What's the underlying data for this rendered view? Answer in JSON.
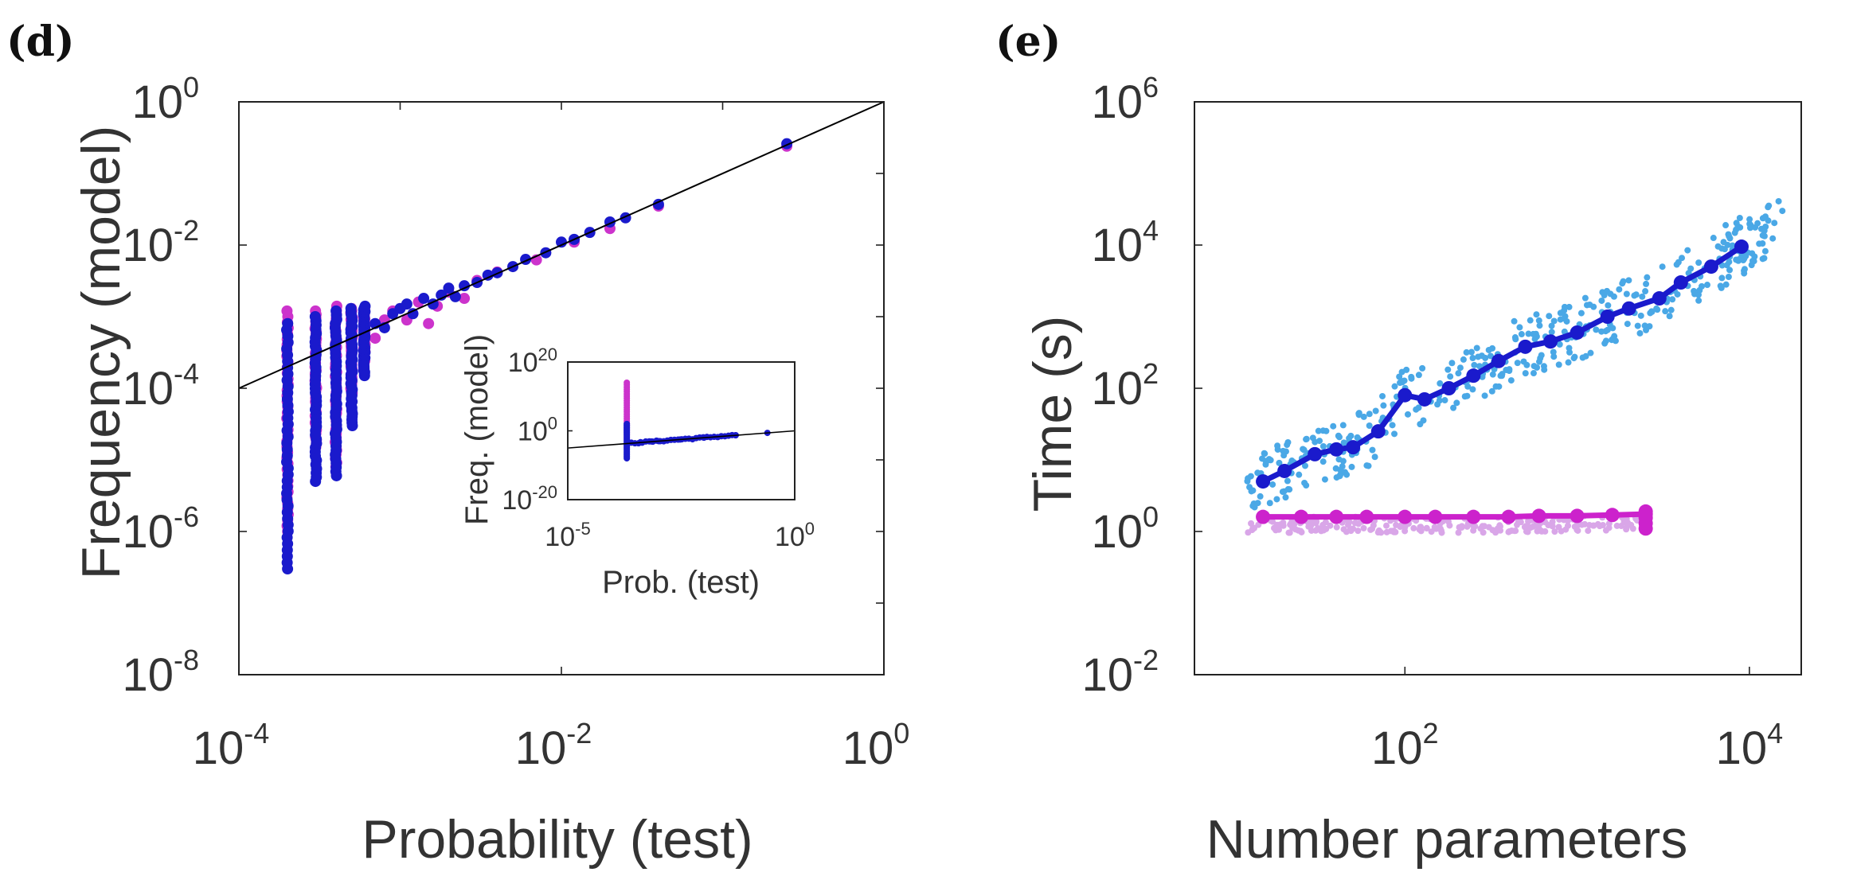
{
  "chart_data": [
    {
      "panel_label": "(d)",
      "type": "scatter",
      "scale": "log-log",
      "xlabel": "Probability (test)",
      "ylabel": "Frequency (model)",
      "xlim": [
        0.0001,
        1
      ],
      "ylim": [
        1e-08,
        1
      ],
      "x_ticks": [
        {
          "base": "10",
          "exp": "-4",
          "value": 0.0001
        },
        {
          "base": "10",
          "exp": "-2",
          "value": 0.01
        },
        {
          "base": "10",
          "exp": "0",
          "value": 1
        }
      ],
      "y_ticks": [
        {
          "base": "10",
          "exp": "-8",
          "value": 1e-08
        },
        {
          "base": "10",
          "exp": "-6",
          "value": 1e-06
        },
        {
          "base": "10",
          "exp": "-4",
          "value": 0.0001
        },
        {
          "base": "10",
          "exp": "-2",
          "value": 0.01
        },
        {
          "base": "10",
          "exp": "0",
          "value": 1
        }
      ],
      "reference_line": {
        "name": "y = x",
        "color": "#000000"
      },
      "series": [
        {
          "name": "magenta",
          "color": "#cc33cc",
          "vertical_bands": [
            {
              "x": 0.0002,
              "y_range": [
                1e-06,
                0.0012
              ]
            },
            {
              "x": 0.0003,
              "y_range": [
                1.5e-05,
                0.0012
              ]
            },
            {
              "x": 0.0004,
              "y_range": [
                8e-06,
                0.0014
              ]
            },
            {
              "x": 0.0005,
              "y_range": [
                8e-05,
                0.0013
              ]
            },
            {
              "x": 0.0006,
              "y_range": [
                0.0002,
                0.0013
              ]
            }
          ],
          "points": [
            [
              0.0007,
              0.0005
            ],
            [
              0.0008,
              0.0009
            ],
            [
              0.0009,
              0.0012
            ],
            [
              0.0011,
              0.0009
            ],
            [
              0.0013,
              0.0016
            ],
            [
              0.0015,
              0.0008
            ],
            [
              0.0017,
              0.0014
            ],
            [
              0.002,
              0.0022
            ],
            [
              0.0025,
              0.0018
            ],
            [
              0.003,
              0.0032
            ],
            [
              0.004,
              0.0042
            ],
            [
              0.007,
              0.0062
            ],
            [
              0.012,
              0.011
            ],
            [
              0.02,
              0.017
            ],
            [
              0.04,
              0.035
            ],
            [
              0.25,
              0.24
            ]
          ]
        },
        {
          "name": "blue",
          "color": "#1a1acc",
          "vertical_bands": [
            {
              "x": 0.0002,
              "y_range": [
                3e-07,
                0.0008
              ]
            },
            {
              "x": 0.0003,
              "y_range": [
                5e-06,
                0.001
              ]
            },
            {
              "x": 0.0004,
              "y_range": [
                6e-06,
                0.0012
              ]
            },
            {
              "x": 0.0005,
              "y_range": [
                3e-05,
                0.0013
              ]
            },
            {
              "x": 0.0006,
              "y_range": [
                0.00015,
                0.0014
              ]
            }
          ],
          "points": [
            [
              0.0007,
              0.0008
            ],
            [
              0.0008,
              0.0007
            ],
            [
              0.0009,
              0.0011
            ],
            [
              0.001,
              0.0013
            ],
            [
              0.0011,
              0.0015
            ],
            [
              0.0012,
              0.0011
            ],
            [
              0.0014,
              0.0018
            ],
            [
              0.0016,
              0.0015
            ],
            [
              0.0018,
              0.002
            ],
            [
              0.002,
              0.0025
            ],
            [
              0.0022,
              0.0019
            ],
            [
              0.0025,
              0.0027
            ],
            [
              0.003,
              0.003
            ],
            [
              0.0035,
              0.0038
            ],
            [
              0.004,
              0.0041
            ],
            [
              0.005,
              0.005
            ],
            [
              0.006,
              0.0063
            ],
            [
              0.008,
              0.0078
            ],
            [
              0.01,
              0.011
            ],
            [
              0.012,
              0.012
            ],
            [
              0.015,
              0.015
            ],
            [
              0.02,
              0.021
            ],
            [
              0.025,
              0.024
            ],
            [
              0.04,
              0.037
            ],
            [
              0.25,
              0.26
            ]
          ]
        }
      ],
      "inset": {
        "type": "scatter",
        "scale": "log-log",
        "xlabel": "Prob. (test)",
        "ylabel": "Freq. (model)",
        "xlim": [
          1e-05,
          1
        ],
        "ylim": [
          1e-20,
          1e+20
        ],
        "x_ticks": [
          {
            "base": "10",
            "exp": "-5",
            "value": 1e-05
          },
          {
            "base": "10",
            "exp": "0",
            "value": 1
          }
        ],
        "y_ticks": [
          {
            "base": "10",
            "exp": "-20",
            "value": 1e-20
          },
          {
            "base": "10",
            "exp": "0",
            "value": 1
          },
          {
            "base": "10",
            "exp": "20",
            "value": 1e+20
          }
        ],
        "series": [
          {
            "name": "magenta",
            "color": "#cc33cc",
            "band": {
              "x": 0.0002,
              "y_range": [
                1e-05,
                100000000000000.0
              ]
            }
          },
          {
            "name": "blue",
            "color": "#1a1acc",
            "band": {
              "x": 0.0002,
              "y_range": [
                1e-08,
                100.0
              ]
            },
            "points": [
              [
                0.0004,
                0.0005
              ],
              [
                0.0007,
                0.0008
              ],
              [
                0.001,
                0.001
              ],
              [
                0.003,
                0.003
              ],
              [
                0.01,
                0.01
              ],
              [
                0.05,
                0.05
              ],
              [
                0.25,
                0.25
              ]
            ]
          }
        ]
      }
    },
    {
      "panel_label": "(e)",
      "type": "line",
      "scale": "log-log",
      "xlabel": "Number parameters",
      "ylabel": "Time (s)",
      "xlim": [
        6,
        20000
      ],
      "ylim": [
        0.01,
        1000000
      ],
      "x_ticks": [
        {
          "base": "10",
          "exp": "2",
          "value": 100
        },
        {
          "base": "10",
          "exp": "4",
          "value": 10000
        }
      ],
      "y_ticks": [
        {
          "base": "10",
          "exp": "-2",
          "value": 0.01
        },
        {
          "base": "10",
          "exp": "0",
          "value": 1
        },
        {
          "base": "10",
          "exp": "2",
          "value": 100
        },
        {
          "base": "10",
          "exp": "4",
          "value": 10000
        },
        {
          "base": "10",
          "exp": "6",
          "value": 1000000
        }
      ],
      "series": [
        {
          "name": "blue mean",
          "color": "#1a1acc",
          "scatter_color": "#4aa8e6",
          "x": [
            15,
            20,
            30,
            40,
            50,
            70,
            100,
            130,
            180,
            250,
            350,
            500,
            700,
            1000,
            1500,
            2000,
            3000,
            4000,
            6000,
            9000
          ],
          "y": [
            5,
            7,
            12,
            14,
            15,
            25,
            80,
            70,
            100,
            150,
            240,
            380,
            450,
            600,
            1000,
            1300,
            1800,
            3000,
            5000,
            9500
          ],
          "scatter_range": {
            "x": [
              12,
              16000
            ],
            "y_ratio": [
              0.4,
              2.8
            ]
          }
        },
        {
          "name": "magenta mean",
          "color": "#cc22cc",
          "scatter_color": "#d9a6e8",
          "x": [
            15,
            25,
            40,
            60,
            100,
            150,
            250,
            400,
            600,
            1000,
            1600,
            2500
          ],
          "y": [
            1.6,
            1.6,
            1.6,
            1.6,
            1.6,
            1.6,
            1.6,
            1.6,
            1.65,
            1.65,
            1.7,
            1.75
          ],
          "scatter_range": {
            "x": [
              12,
              2600
            ],
            "y_ratio": [
              0.6,
              1.0
            ]
          }
        }
      ]
    }
  ]
}
